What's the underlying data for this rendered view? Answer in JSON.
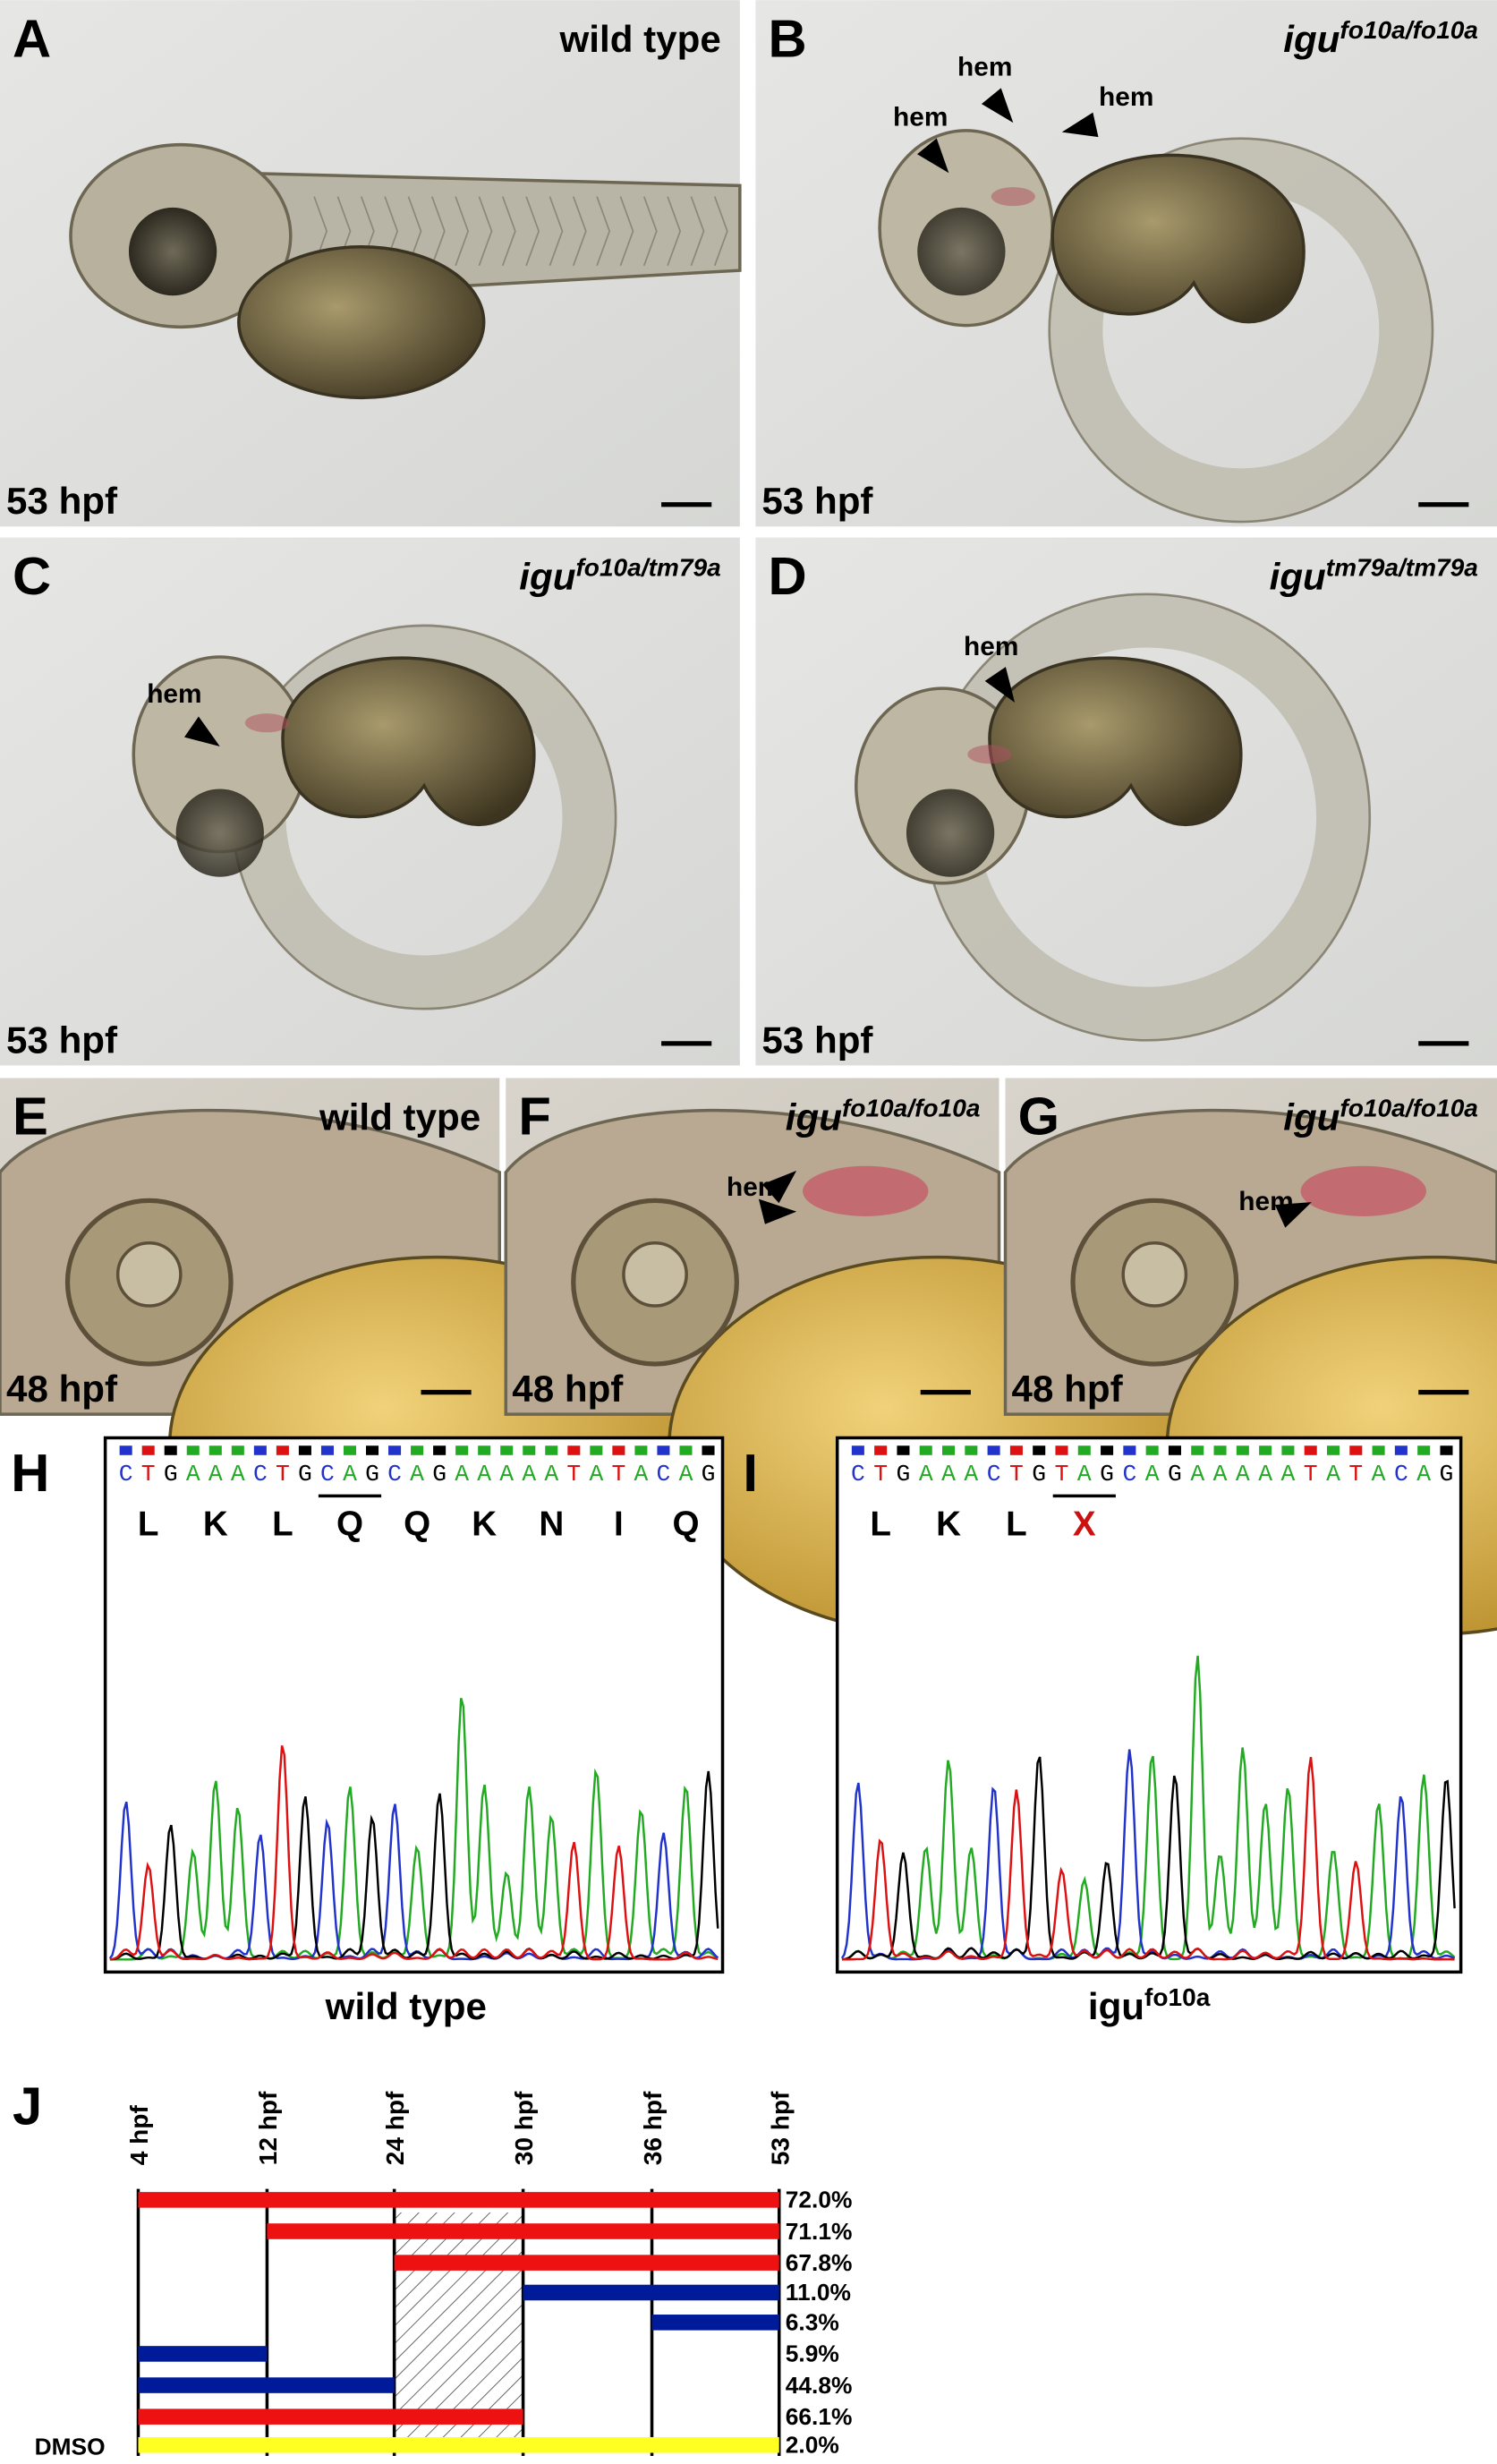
{
  "panels": [
    {
      "letter": "A",
      "genotype": {
        "text": "wild type"
      },
      "stage": "53 hpf",
      "annotations": []
    },
    {
      "letter": "B",
      "genotype": {
        "gene": "igu",
        "allele": "fo10a/fo10a"
      },
      "stage": "53 hpf",
      "annotations": [
        "hem",
        "hem",
        "hem"
      ]
    },
    {
      "letter": "C",
      "genotype": {
        "gene": "igu",
        "allele": "fo10a/tm79a"
      },
      "stage": "53 hpf",
      "annotations": [
        "hem"
      ]
    },
    {
      "letter": "D",
      "genotype": {
        "gene": "igu",
        "allele": "tm79a/tm79a"
      },
      "stage": "53 hpf",
      "annotations": [
        "hem"
      ]
    },
    {
      "letter": "E",
      "genotype": {
        "text": "wild type"
      },
      "stage": "48 hpf",
      "annotations": []
    },
    {
      "letter": "F",
      "genotype": {
        "gene": "igu",
        "allele": "fo10a/fo10a"
      },
      "stage": "48 hpf",
      "annotations": [
        "hem"
      ]
    },
    {
      "letter": "G",
      "genotype": {
        "gene": "igu",
        "allele": "fo10a/fo10a"
      },
      "stage": "48 hpf",
      "annotations": [
        "hem"
      ]
    }
  ],
  "sequences": [
    {
      "letter": "H",
      "bases": [
        "C",
        "T",
        "G",
        "A",
        "A",
        "A",
        "C",
        "T",
        "G",
        "C",
        "A",
        "G",
        "C",
        "A",
        "G",
        "A",
        "A",
        "A",
        "A",
        "A",
        "T",
        "A",
        "T",
        "A",
        "C",
        "A",
        "G"
      ],
      "amino_acids": [
        "L",
        "K",
        "L",
        "Q",
        "Q",
        "K",
        "N",
        "I",
        "Q"
      ],
      "caption": {
        "text": "wild type"
      }
    },
    {
      "letter": "I",
      "bases": [
        "C",
        "T",
        "G",
        "A",
        "A",
        "A",
        "C",
        "T",
        "G",
        "T",
        "A",
        "G",
        "C",
        "A",
        "G",
        "A",
        "A",
        "A",
        "A",
        "A",
        "T",
        "A",
        "T",
        "A",
        "C",
        "A",
        "G"
      ],
      "amino_acids": [
        "L",
        "K",
        "L",
        "X"
      ],
      "caption": {
        "gene": "igu",
        "allele": "fo10a"
      }
    }
  ],
  "timeline": {
    "letter": "J",
    "timepoints": [
      "4 hpf",
      "12 hpf",
      "24 hpf",
      "30 hpf",
      "36 hpf",
      "53 hpf"
    ],
    "rows": [
      {
        "percent": "72.0%"
      },
      {
        "percent": "71.1%"
      },
      {
        "percent": "67.8%"
      },
      {
        "percent": "11.0%"
      },
      {
        "percent": "6.3%"
      },
      {
        "percent": "5.9%"
      },
      {
        "percent": "44.8%"
      },
      {
        "percent": "66.1%"
      },
      {
        "label": "DMSO",
        "percent": "2.0%"
      }
    ]
  }
}
